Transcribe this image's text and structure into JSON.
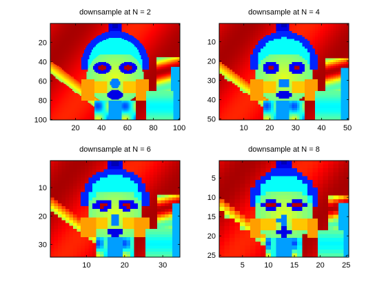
{
  "figure": {
    "background": "#ffffff",
    "colormap": "jet"
  },
  "chart_data": [
    {
      "type": "heatmap",
      "title": "downsample at N = 2",
      "grid_size": 100,
      "xticks": [
        20,
        40,
        60,
        80,
        100
      ],
      "yticks": [
        20,
        40,
        60,
        80,
        100
      ],
      "xlim": [
        0.5,
        100.5
      ],
      "ylim": [
        0.5,
        100.5
      ],
      "y_direction": "reverse",
      "grid": false
    },
    {
      "type": "heatmap",
      "title": "downsample at N = 4",
      "grid_size": 50,
      "xticks": [
        10,
        20,
        30,
        40,
        50
      ],
      "yticks": [
        10,
        20,
        30,
        40,
        50
      ],
      "xlim": [
        0.5,
        50.5
      ],
      "ylim": [
        0.5,
        50.5
      ],
      "y_direction": "reverse",
      "grid": false
    },
    {
      "type": "heatmap",
      "title": "downsample at N = 6",
      "grid_size": 34,
      "xticks": [
        10,
        20,
        30
      ],
      "yticks": [
        10,
        20,
        30
      ],
      "xlim": [
        0.5,
        34.5
      ],
      "ylim": [
        0.5,
        34.5
      ],
      "y_direction": "reverse",
      "grid": false
    },
    {
      "type": "heatmap",
      "title": "downsample at N = 8",
      "grid_size": 25,
      "xticks": [
        5,
        10,
        15,
        20,
        25
      ],
      "yticks": [
        5,
        10,
        15,
        20,
        25
      ],
      "xlim": [
        0.5,
        25.5
      ],
      "ylim": [
        0.5,
        25.5
      ],
      "y_direction": "reverse",
      "grid": false
    }
  ]
}
